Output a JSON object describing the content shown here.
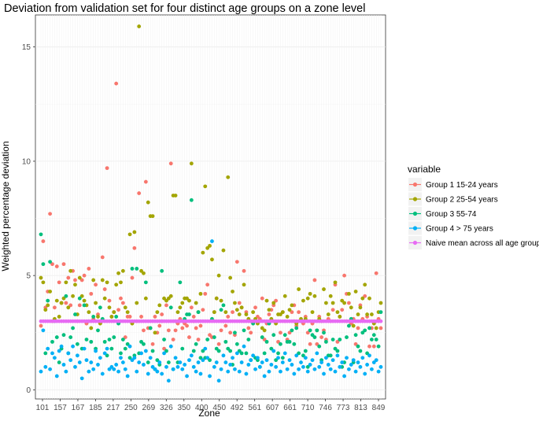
{
  "chart_data": {
    "type": "scatter",
    "title": "Deviation from validation set for four distinct age groups on a zone level",
    "xlabel": "Zone",
    "ylabel": "Weighted percentage deviation",
    "x_tick_labels": [
      "101",
      "157",
      "167",
      "185",
      "217",
      "250",
      "269",
      "326",
      "350",
      "400",
      "450",
      "492",
      "561",
      "607",
      "661",
      "710",
      "746",
      "773",
      "813",
      "849"
    ],
    "ylim": [
      -0.4,
      16.4
    ],
    "y_ticks": [
      0,
      5,
      10,
      15
    ],
    "grid": true,
    "legend": {
      "title": "variable",
      "position": "right",
      "entries": [
        "Group 1 15-24 years",
        "Group 2 25-54 years",
        "Group 3 55-74",
        "Group 4 > 75 years",
        "Naive mean across all age groups"
      ]
    },
    "series": [
      {
        "name": "Group 1 15-24 years",
        "color": "#F8766D",
        "values": [
          2.8,
          6.5,
          3.6,
          4.3,
          7.7,
          5.5,
          3.6,
          5.4,
          4.7,
          3.8,
          5.5,
          3.8,
          4.9,
          3.7,
          5.2,
          4.8,
          3.0,
          3.7,
          4.8,
          5.0,
          2.9,
          5.3,
          4.2,
          3.1,
          4.6,
          3.3,
          3.0,
          5.8,
          4.4,
          9.7,
          3.9,
          3.2,
          3.4,
          13.4,
          3.5,
          4.0,
          3.8,
          2.3,
          3.2,
          3.2,
          4.9,
          6.2,
          3.0,
          8.6,
          3.2,
          2.6,
          9.1,
          2.7,
          2.7,
          2.0,
          3.2,
          2.5,
          2.8,
          3.3,
          1.8,
          3.7,
          2.6,
          9.9,
          2.2,
          2.6,
          2.9,
          3.1,
          2.7,
          2.9,
          2.8,
          2.3,
          3.6,
          3.2,
          2.7,
          2.2,
          2.8,
          3.5,
          4.2,
          4.6,
          2.4,
          2.3,
          3.4,
          4.0,
          2.0,
          2.6,
          3.0,
          2.8,
          3.2,
          2.5,
          3.4,
          2.4,
          5.6,
          3.8,
          3.6,
          5.2,
          3.4,
          2.7,
          2.5,
          2.9,
          3.6,
          3.2,
          3.1,
          4.0,
          2.2,
          2.9,
          3.3,
          3.5,
          3.7,
          3.9,
          2.1,
          2.5,
          3.4,
          3.0,
          2.2,
          2.5,
          3.4,
          3.7,
          2.8,
          3.4,
          3.0,
          2.9,
          3.2,
          2.5,
          2.0,
          2.9,
          4.8,
          2.0,
          3.2,
          2.3,
          2.6,
          2.2,
          3.1,
          3.0,
          3.5,
          4.6,
          2.1,
          3.2,
          3.5,
          5.0,
          4.2,
          3.8,
          2.9,
          3.1,
          2.0,
          2.7,
          3.7,
          3.1,
          4.1,
          3.2,
          1.9,
          2.7,
          1.9,
          5.1,
          3.1,
          2.7
        ]
      },
      {
        "name": "Group 2 25-54 years",
        "color": "#A3A500",
        "values": [
          4.9,
          4.7,
          3.5,
          3.7,
          4.3,
          3.0,
          3.1,
          3.9,
          3.2,
          3.8,
          4.0,
          4.7,
          3.6,
          5.2,
          4.1,
          4.6,
          3.3,
          4.9,
          4.1,
          3.9,
          3.7,
          3.4,
          2.7,
          4.8,
          3.8,
          3.2,
          2.9,
          4.8,
          4.0,
          4.7,
          3.6,
          3.2,
          3.4,
          4.6,
          5.1,
          4.7,
          5.2,
          3.6,
          3.4,
          6.8,
          2.9,
          6.9,
          3.8,
          15.9,
          5.2,
          5.1,
          4.0,
          8.2,
          7.6,
          7.6,
          2.5,
          3.4,
          3.7,
          3.0,
          4.0,
          3.9,
          4.0,
          4.1,
          8.5,
          8.5,
          3.4,
          3.6,
          3.8,
          4.0,
          4.0,
          3.9,
          9.9,
          3.0,
          3.8,
          3.4,
          4.2,
          6.0,
          8.9,
          6.2,
          6.3,
          5.7,
          3.4,
          4.0,
          5.0,
          3.9,
          6.1,
          3.4,
          9.3,
          4.9,
          4.3,
          3.8,
          3.5,
          3.3,
          3.6,
          4.6,
          3.3,
          3.1,
          3.0,
          3.4,
          3.1,
          2.9,
          3.0,
          2.7,
          2.6,
          3.9,
          3.5,
          3.1,
          3.8,
          2.9,
          3.3,
          3.3,
          3.4,
          4.1,
          3.2,
          3.5,
          3.7,
          3.0,
          2.9,
          4.4,
          3.1,
          3.9,
          3.1,
          4.0,
          4.2,
          3.4,
          4.1,
          2.6,
          3.1,
          3.0,
          4.4,
          3.8,
          3.3,
          4.1,
          3.8,
          4.7,
          3.4,
          3.2,
          3.9,
          3.8,
          3.0,
          4.2,
          3.6,
          2.8,
          4.3,
          3.3,
          3.6,
          4.0,
          4.6,
          3.3,
          4.0,
          3.3,
          2.9,
          2.7,
          3.4,
          3.8
        ]
      },
      {
        "name": "Group 3 55-74",
        "color": "#00BF7D",
        "values": [
          6.8,
          5.5,
          1.6,
          3.9,
          5.6,
          2.1,
          3.0,
          2.3,
          1.2,
          1.8,
          2.4,
          4.1,
          1.6,
          2.3,
          2.7,
          3.3,
          2.0,
          4.0,
          1.8,
          3.7,
          2.2,
          3.0,
          2.1,
          3.2,
          1.8,
          2.6,
          3.6,
          3.1,
          2.1,
          1.5,
          2.2,
          1.8,
          2.3,
          3.2,
          2.9,
          1.6,
          2.2,
          1.8,
          2.0,
          1.4,
          5.3,
          1.5,
          5.3,
          1.6,
          2.1,
          2.0,
          4.7,
          1.2,
          2.7,
          1.7,
          0.9,
          1.3,
          1.1,
          5.2,
          2.2,
          1.7,
          1.2,
          3.6,
          0.9,
          3.0,
          1.2,
          4.7,
          1.8,
          3.1,
          3.3,
          3.3,
          8.3,
          1.7,
          2.0,
          3.4,
          1.4,
          1.7,
          1.4,
          2.2,
          1.3,
          3.1,
          2.3,
          1.8,
          1.7,
          3.5,
          3.7,
          2.1,
          1.8,
          1.7,
          1.1,
          2.5,
          2.0,
          1.7,
          1.6,
          2.6,
          1.6,
          2.2,
          1.3,
          2.9,
          1.4,
          1.3,
          1.0,
          2.3,
          1.6,
          2.1,
          2.9,
          1.8,
          2.4,
          1.3,
          1.6,
          2.0,
          1.4,
          2.4,
          2.1,
          2.1,
          2.6,
          2.0,
          2.7,
          1.6,
          3.0,
          1.5,
          1.7,
          1.0,
          2.6,
          2.4,
          2.3,
          2.6,
          1.9,
          1.3,
          2.5,
          2.1,
          1.5,
          1.5,
          2.2,
          1.8,
          1.7,
          2.2,
          1.0,
          1.2,
          2.3,
          2.8,
          3.1,
          1.2,
          2.4,
          1.9,
          1.7,
          2.5,
          2.6,
          1.6,
          2.7,
          2.2,
          2.4,
          2.2,
          1.9,
          3.4
        ]
      },
      {
        "name": "Group 4 > 75 years",
        "color": "#00B0F6",
        "values": [
          0.8,
          2.6,
          1.0,
          1.8,
          0.9,
          1.6,
          1.4,
          0.6,
          1.7,
          1.9,
          1.1,
          0.8,
          1.6,
          1.3,
          1.9,
          1.0,
          1.5,
          1.2,
          0.5,
          1.8,
          1.3,
          0.8,
          1.2,
          0.9,
          1.7,
          1.1,
          1.4,
          0.7,
          1.6,
          1.8,
          0.9,
          1.0,
          0.9,
          1.1,
          0.8,
          1.4,
          1.2,
          0.9,
          0.6,
          1.9,
          1.3,
          1.4,
          0.8,
          1.2,
          1.6,
          1.1,
          1.7,
          0.7,
          1.4,
          1.0,
          0.9,
          0.8,
          1.2,
          0.7,
          1.6,
          1.0,
          0.4,
          1.9,
          0.9,
          1.4,
          1.0,
          1.2,
          0.9,
          1.1,
          0.6,
          1.3,
          1.5,
          1.0,
          0.8,
          1.2,
          0.7,
          1.3,
          1.8,
          1.4,
          0.6,
          6.5,
          1.0,
          1.2,
          0.4,
          0.9,
          1.5,
          1.2,
          0.8,
          1.1,
          1.4,
          0.9,
          1.6,
          0.8,
          1.2,
          1.9,
          0.7,
          1.1,
          1.3,
          1.5,
          0.9,
          1.4,
          1.0,
          1.2,
          0.6,
          1.3,
          0.8,
          1.1,
          1.7,
          1.0,
          1.4,
          0.8,
          1.2,
          1.6,
          0.9,
          1.3,
          1.1,
          0.7,
          1.5,
          0.9,
          1.2,
          1.0,
          1.4,
          0.8,
          1.1,
          1.3,
          0.9,
          1.6,
          1.0,
          1.2,
          0.7,
          1.4,
          1.1,
          0.9,
          1.3,
          0.8,
          1.5,
          1.0,
          1.2,
          0.6,
          1.4,
          0.9,
          1.1,
          1.3,
          0.8,
          1.2,
          1.0,
          1.4,
          0.7,
          1.1,
          1.5,
          0.9,
          1.2,
          1.3,
          0.8,
          1.0
        ]
      },
      {
        "name": "Naive mean across all age groups",
        "color": "#E76BF3",
        "constant": 3.0
      }
    ]
  }
}
